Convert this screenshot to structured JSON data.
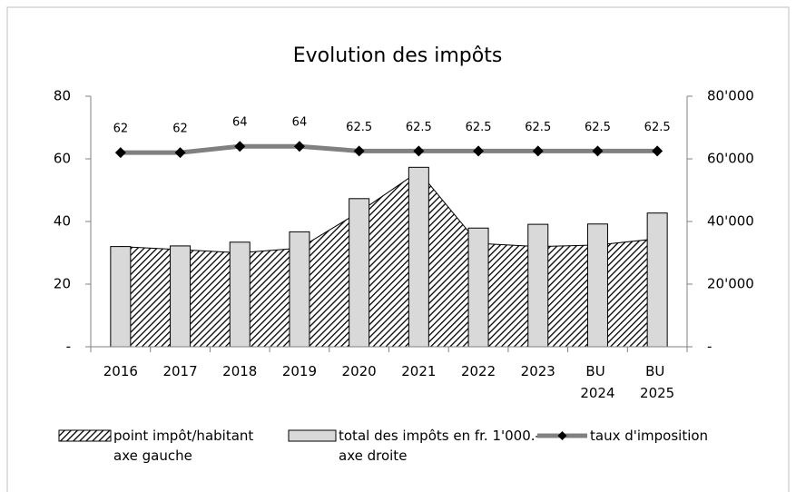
{
  "chart_data": {
    "type": "combo",
    "title": "Evolution des impôts",
    "categories": [
      "2016",
      "2017",
      "2018",
      "2019",
      "2020",
      "2021",
      "2022",
      "2023",
      "BU 2024",
      "BU 2025"
    ],
    "series": [
      {
        "name": "point impôt/habitant axe gauche",
        "type": "area",
        "color": "#000000",
        "axis": "y",
        "values": [
          32,
          31,
          30,
          31.5,
          43,
          56,
          33,
          32,
          32.5,
          34.5
        ]
      },
      {
        "name": "total des impôts en fr. 1'000.- axe droite",
        "type": "bar",
        "color": "#d9d9d9",
        "axis": "y2",
        "values": [
          32000,
          32200,
          33400,
          36700,
          47300,
          57300,
          37900,
          39100,
          39200,
          42700
        ]
      },
      {
        "name": "taux d'imposition",
        "type": "line",
        "color": "#808080",
        "axis": "y",
        "values": [
          62,
          62,
          64,
          64,
          62.5,
          62.5,
          62.5,
          62.5,
          62.5,
          62.5
        ]
      }
    ],
    "ylim": [
      0,
      80
    ],
    "yticks": [
      {
        "value": 0,
        "label": "-"
      },
      20,
      40,
      60,
      80
    ],
    "y2lim": [
      0,
      80000
    ],
    "y2ticks": [
      {
        "value": 0,
        "label": "-"
      },
      {
        "value": 20000,
        "label": "20'000"
      },
      {
        "value": 40000,
        "label": "40'000"
      },
      {
        "value": 60000,
        "label": "60'000"
      },
      {
        "value": 80000,
        "label": "80'000"
      }
    ],
    "legend": "bottom"
  }
}
